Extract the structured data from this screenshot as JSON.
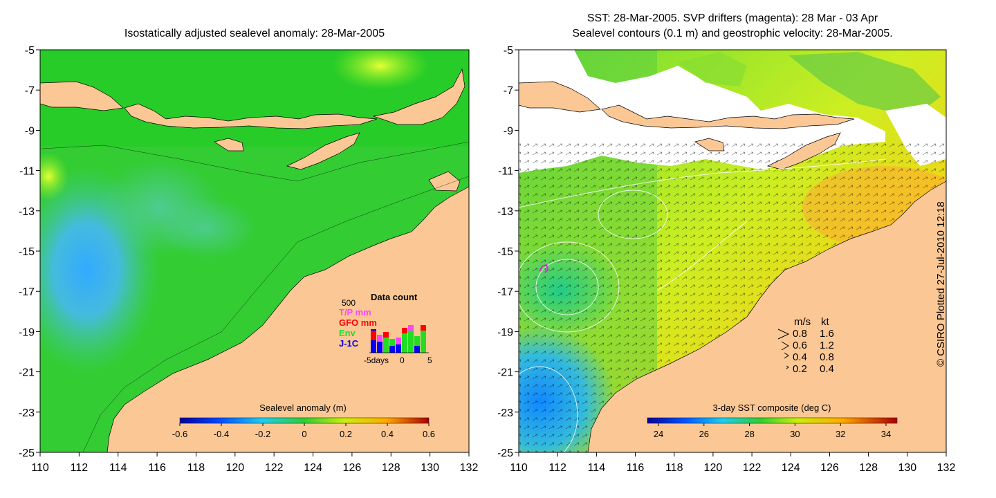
{
  "left_panel": {
    "title": "Isostatically adjusted sealevel anomaly: 28-Mar-2005",
    "colorbar": {
      "title": "Sealevel anomaly (m)",
      "ticks": [
        "-0.6",
        "-0.4",
        "-0.2",
        "0",
        "0.2",
        "0.4",
        "0.6"
      ]
    },
    "data_count": {
      "title": "Data count",
      "max": "500",
      "legend": [
        {
          "label": "T/P mm",
          "color": "#ff44ff"
        },
        {
          "label": "GFO mm",
          "color": "#ff0000"
        },
        {
          "label": "Env",
          "color": "#22dd22"
        },
        {
          "label": "J-1C",
          "color": "#0000ff"
        }
      ],
      "xlabel_left": "-5days",
      "xlabel_mid": "0",
      "xlabel_right": "5"
    }
  },
  "right_panel": {
    "title_line1": "SST: 28-Mar-2005. SVP drifters (magenta): 28 Mar - 03 Apr",
    "title_line2": "Sealevel contours (0.1 m) and geostrophic velocity: 28-Mar-2005.",
    "colorbar": {
      "title": "3-day SST composite (deg C)",
      "ticks": [
        "24",
        "26",
        "28",
        "30",
        "32",
        "34"
      ]
    },
    "velocity_legend": {
      "header_ms": "m/s",
      "header_kt": "kt",
      "rows": [
        {
          "ms": "0.8",
          "kt": "1.6"
        },
        {
          "ms": "0.6",
          "kt": "1.2"
        },
        {
          "ms": "0.4",
          "kt": "0.8"
        },
        {
          "ms": "0.2",
          "kt": "0.4"
        }
      ]
    }
  },
  "axes": {
    "y_ticks": [
      "-5",
      "-7",
      "-9",
      "-11",
      "-13",
      "-15",
      "-17",
      "-19",
      "-21",
      "-23",
      "-25"
    ],
    "x_ticks": [
      "110",
      "112",
      "114",
      "116",
      "118",
      "120",
      "122",
      "124",
      "126",
      "128",
      "130",
      "132"
    ]
  },
  "credit": "© CSIRO Plotted 27-Jul-2010 12:18",
  "colors": {
    "land": "#fbc895",
    "sea_anomaly_base": "#33cc33",
    "white_cloud": "#ffffff"
  }
}
